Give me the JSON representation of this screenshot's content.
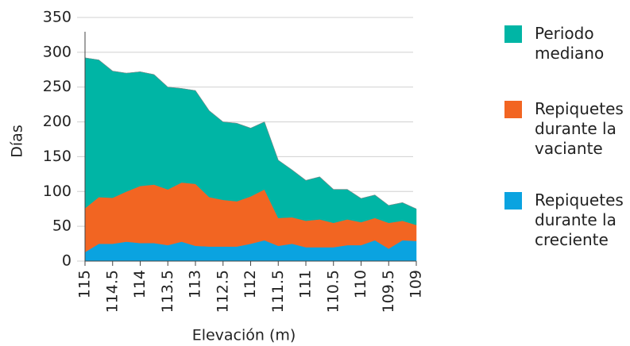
{
  "chart_data": {
    "type": "stacked_area",
    "x_label": "Elevación (m)",
    "y_label": "Días",
    "x": [
      115,
      114.75,
      114.5,
      114.25,
      114,
      113.75,
      113.5,
      113.25,
      113,
      112.75,
      112.5,
      112.25,
      112,
      111.75,
      111.5,
      111.25,
      111,
      110.75,
      110.5,
      110.25,
      110,
      109.75,
      109.5,
      109.25,
      109
    ],
    "series": [
      {
        "name": "Repiquetes durante la creciente",
        "color": "#0aa3e0",
        "values": [
          13,
          25,
          25,
          28,
          26,
          26,
          23,
          28,
          22,
          21,
          21,
          21,
          25,
          30,
          22,
          25,
          20,
          20,
          20,
          23,
          23,
          30,
          18,
          30,
          29
        ]
      },
      {
        "name": "Repiquetes durante la vaciante",
        "color": "#f26522",
        "values": [
          63,
          67,
          66,
          72,
          82,
          84,
          80,
          85,
          89,
          71,
          67,
          65,
          68,
          73,
          40,
          38,
          38,
          40,
          35,
          37,
          33,
          32,
          37,
          28,
          23
        ]
      },
      {
        "name": "Periodo mediano",
        "color": "#00b5a5",
        "values": [
          216,
          197,
          182,
          170,
          164,
          158,
          147,
          135,
          134,
          124,
          112,
          112,
          98,
          97,
          83,
          68,
          58,
          61,
          48,
          43,
          34,
          33,
          25,
          26,
          23
        ]
      }
    ],
    "xlim": [
      115,
      109
    ],
    "xticks": [
      115,
      114.5,
      114,
      113.5,
      113,
      112.5,
      112,
      111.5,
      111,
      110.5,
      110,
      109.5,
      109
    ],
    "ylim": [
      0,
      350
    ],
    "yticks": [
      0,
      50,
      100,
      150,
      200,
      250,
      300,
      350
    ],
    "grid": true
  }
}
